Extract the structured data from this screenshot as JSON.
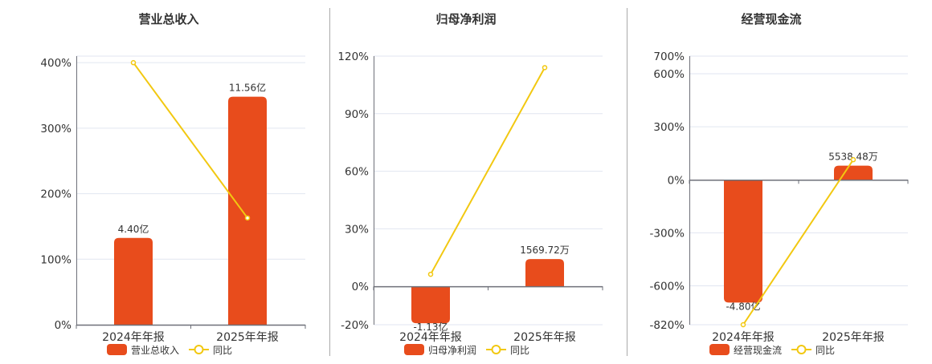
{
  "colors": {
    "bar": "#e84c1c",
    "line": "#f2c811",
    "grid": "#e1e6f0",
    "axis": "#6e7079",
    "divider": "#aaaaaa",
    "text": "#333333"
  },
  "chart_data": [
    {
      "type": "bar",
      "title": "营业总收入",
      "categories": [
        "2024年年报",
        "2025年年报"
      ],
      "yticks": [
        "0%",
        "100%",
        "200%",
        "300%",
        "400%"
      ],
      "ytick_values": [
        0,
        100,
        200,
        300,
        400
      ],
      "ylim": [
        0,
        410
      ],
      "grid": true,
      "legend_placement": "bottom",
      "series": [
        {
          "name": "营业总收入",
          "type": "bar",
          "values": [
            4.4,
            11.56
          ],
          "unit": "亿",
          "labels": [
            "4.40亿",
            "11.56亿"
          ]
        },
        {
          "name": "同比",
          "type": "line",
          "values": [
            400,
            163
          ],
          "unit": "%"
        }
      ]
    },
    {
      "type": "bar",
      "title": "归母净利润",
      "categories": [
        "2024年年报",
        "2025年年报"
      ],
      "yticks": [
        "-20%",
        "0%",
        "30%",
        "60%",
        "90%",
        "120%"
      ],
      "ytick_values": [
        -20,
        0,
        30,
        60,
        90,
        120
      ],
      "ylim": [
        -20,
        120
      ],
      "grid": true,
      "legend_placement": "bottom",
      "series": [
        {
          "name": "归母净利润",
          "type": "bar",
          "values": [
            -1.13,
            0.156972
          ],
          "unit": "亿",
          "labels": [
            "-1.13亿",
            "1569.72万"
          ]
        },
        {
          "name": "同比",
          "type": "line",
          "values": [
            6.3,
            114
          ],
          "unit": "%"
        }
      ]
    },
    {
      "type": "bar",
      "title": "经营现金流",
      "categories": [
        "2024年年报",
        "2025年年报"
      ],
      "yticks": [
        "-820%",
        "-600%",
        "-300%",
        "0%",
        "300%",
        "600%",
        "700%"
      ],
      "ytick_values": [
        -820,
        -600,
        -300,
        0,
        300,
        600,
        700
      ],
      "ylim": [
        -820,
        700
      ],
      "grid": true,
      "legend_placement": "bottom",
      "series": [
        {
          "name": "经营现金流",
          "type": "bar",
          "values": [
            -4.8,
            0.553848
          ],
          "unit": "亿",
          "labels": [
            "-4.80亿",
            "5538.48万"
          ]
        },
        {
          "name": "同比",
          "type": "line",
          "values": [
            -820,
            114
          ],
          "unit": "%"
        }
      ]
    }
  ]
}
